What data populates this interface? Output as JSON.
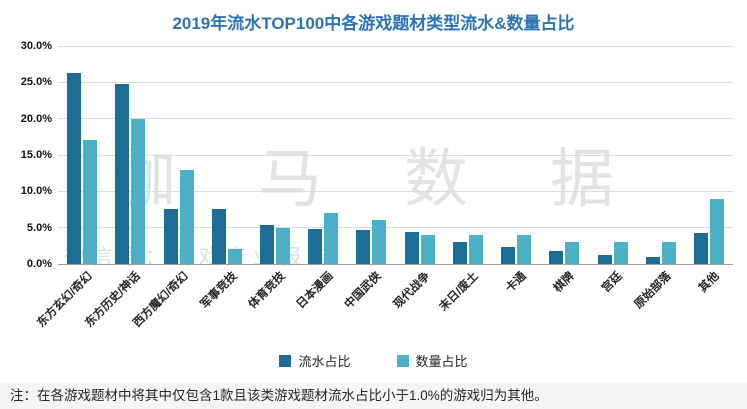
{
  "title": "2019年流水TOP100中各游戏题材类型流水&数量占比",
  "watermark": {
    "main": "伽马数据",
    "sub": "微信号：游戏产业报告"
  },
  "note": "注：在各游戏题材中将其中仅包含1款且该类游戏题材流水占比小于1.0%的游戏归为其他。",
  "colors": {
    "title": "#2e74b5",
    "series_revenue": "#1b6d96",
    "series_count": "#4bb1c9",
    "gridline": "#dcdcdc",
    "watermark": "#c9c9c9"
  },
  "chart_data": {
    "type": "bar",
    "title": "2019年流水TOP100中各游戏题材类型流水&数量占比",
    "categories": [
      "东方玄幻/奇幻",
      "东方历史/神话",
      "西方魔幻/奇幻",
      "军事竞技",
      "体育竞技",
      "日本漫画",
      "中国武侠",
      "现代战争",
      "末日/废土",
      "卡通",
      "棋牌",
      "宫廷",
      "原始部落",
      "其他"
    ],
    "series": [
      {
        "name": "流水占比",
        "values": [
          26.3,
          24.8,
          7.6,
          7.6,
          5.4,
          4.8,
          4.7,
          4.4,
          3.0,
          2.3,
          1.8,
          1.2,
          1.0,
          4.3
        ]
      },
      {
        "name": "数量占比",
        "values": [
          17.0,
          20.0,
          13.0,
          2.0,
          5.0,
          7.0,
          6.0,
          4.0,
          4.0,
          4.0,
          3.0,
          3.0,
          3.0,
          9.0
        ]
      }
    ],
    "xlabel": "",
    "ylabel": "",
    "ylim": [
      0,
      30
    ],
    "ytick_step": 5,
    "ytick_labels": [
      "0.0%",
      "5.0%",
      "10.0%",
      "15.0%",
      "20.0%",
      "25.0%",
      "30.0%"
    ],
    "grid": true,
    "legend_position": "bottom"
  }
}
